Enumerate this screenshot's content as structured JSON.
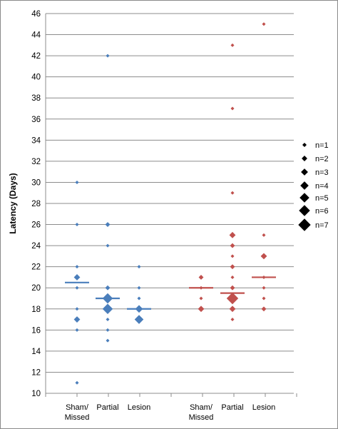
{
  "chart_data": {
    "type": "scatter",
    "title": "",
    "ylabel": "Latency (Days)",
    "xlabel": "",
    "ylim": [
      10,
      46
    ],
    "ytick_step": 2,
    "grid": true,
    "legend_position": "right",
    "marker_shape": "diamond",
    "categories": [
      {
        "label1": "Sham/",
        "label2": "Missed"
      },
      {
        "label1": "Partial",
        "label2": ""
      },
      {
        "label1": "Lesion",
        "label2": ""
      },
      {
        "label1": "Sham/",
        "label2": "Missed"
      },
      {
        "label1": "Partial",
        "label2": ""
      },
      {
        "label1": "Lesion",
        "label2": ""
      }
    ],
    "groups": [
      {
        "color": "#4a7ebb",
        "median": 20.5,
        "points": [
          {
            "y": 30,
            "n": 1
          },
          {
            "y": 26,
            "n": 1
          },
          {
            "y": 22,
            "n": 1
          },
          {
            "y": 21,
            "n": 3
          },
          {
            "y": 20,
            "n": 1
          },
          {
            "y": 18,
            "n": 1
          },
          {
            "y": 17,
            "n": 3
          },
          {
            "y": 16,
            "n": 1
          },
          {
            "y": 11,
            "n": 1
          }
        ]
      },
      {
        "color": "#4a7ebb",
        "median": 19,
        "points": [
          {
            "y": 42,
            "n": 1
          },
          {
            "y": 26,
            "n": 2
          },
          {
            "y": 24,
            "n": 1
          },
          {
            "y": 20,
            "n": 2
          },
          {
            "y": 19,
            "n": 6
          },
          {
            "y": 18,
            "n": 6
          },
          {
            "y": 17,
            "n": 1
          },
          {
            "y": 16,
            "n": 1
          },
          {
            "y": 15,
            "n": 1
          }
        ]
      },
      {
        "color": "#4a7ebb",
        "median": 18,
        "points": [
          {
            "y": 22,
            "n": 1
          },
          {
            "y": 20,
            "n": 1
          },
          {
            "y": 19,
            "n": 1
          },
          {
            "y": 18,
            "n": 4
          },
          {
            "y": 17,
            "n": 5
          }
        ]
      },
      {
        "color": "#c0504d",
        "median": 20,
        "points": [
          {
            "y": 21,
            "n": 2
          },
          {
            "y": 20,
            "n": 1
          },
          {
            "y": 19,
            "n": 1
          },
          {
            "y": 18,
            "n": 3
          }
        ]
      },
      {
        "color": "#c0504d",
        "median": 19.5,
        "points": [
          {
            "y": 43,
            "n": 1
          },
          {
            "y": 37,
            "n": 1
          },
          {
            "y": 29,
            "n": 1
          },
          {
            "y": 25,
            "n": 3
          },
          {
            "y": 24,
            "n": 2
          },
          {
            "y": 23,
            "n": 1
          },
          {
            "y": 22,
            "n": 2
          },
          {
            "y": 21,
            "n": 1
          },
          {
            "y": 20,
            "n": 2
          },
          {
            "y": 19,
            "n": 7
          },
          {
            "y": 18,
            "n": 3
          },
          {
            "y": 17,
            "n": 1
          }
        ]
      },
      {
        "color": "#c0504d",
        "median": 21,
        "points": [
          {
            "y": 45,
            "n": 1
          },
          {
            "y": 25,
            "n": 1
          },
          {
            "y": 23,
            "n": 3
          },
          {
            "y": 21,
            "n": 1
          },
          {
            "y": 20,
            "n": 1
          },
          {
            "y": 19,
            "n": 1
          },
          {
            "y": 18,
            "n": 2
          }
        ]
      }
    ],
    "legend": [
      {
        "label": "n=1",
        "n": 1
      },
      {
        "label": "n=2",
        "n": 2
      },
      {
        "label": "n=3",
        "n": 3
      },
      {
        "label": "n=4",
        "n": 4
      },
      {
        "label": "n=5",
        "n": 5
      },
      {
        "label": "n=6",
        "n": 6
      },
      {
        "label": "n=7",
        "n": 7
      }
    ],
    "legend_color": "#000000"
  }
}
